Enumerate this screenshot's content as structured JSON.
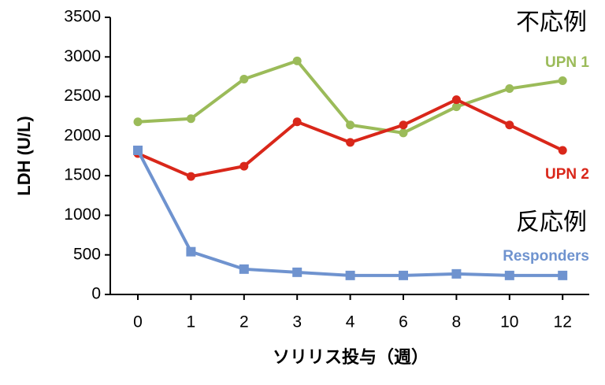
{
  "chart_data": {
    "type": "line",
    "x_label": "ソリリス投与（週）",
    "y_label": "LDH (U/L)",
    "categories": [
      "0",
      "1",
      "2",
      "3",
      "4",
      "6",
      "8",
      "10",
      "12"
    ],
    "series": [
      {
        "name": "UPN 1",
        "color": "#9bbb59",
        "marker": "circle",
        "values": [
          2180,
          2220,
          2720,
          2950,
          2140,
          2040,
          2370,
          2600,
          2700
        ]
      },
      {
        "name": "UPN 2",
        "color": "#d9271a",
        "marker": "circle",
        "values": [
          1780,
          1490,
          1620,
          2180,
          1920,
          2140,
          2460,
          2140,
          1820
        ]
      },
      {
        "name": "Responders",
        "color": "#6f93cf",
        "marker": "square",
        "values": [
          1820,
          540,
          320,
          280,
          240,
          240,
          260,
          240,
          240
        ]
      }
    ],
    "annotations": [
      "不応例",
      "反応例"
    ],
    "ylim": [
      0,
      3500
    ],
    "yticks": [
      0,
      500,
      1000,
      1500,
      2000,
      2500,
      3000,
      3500
    ],
    "grid": false
  }
}
